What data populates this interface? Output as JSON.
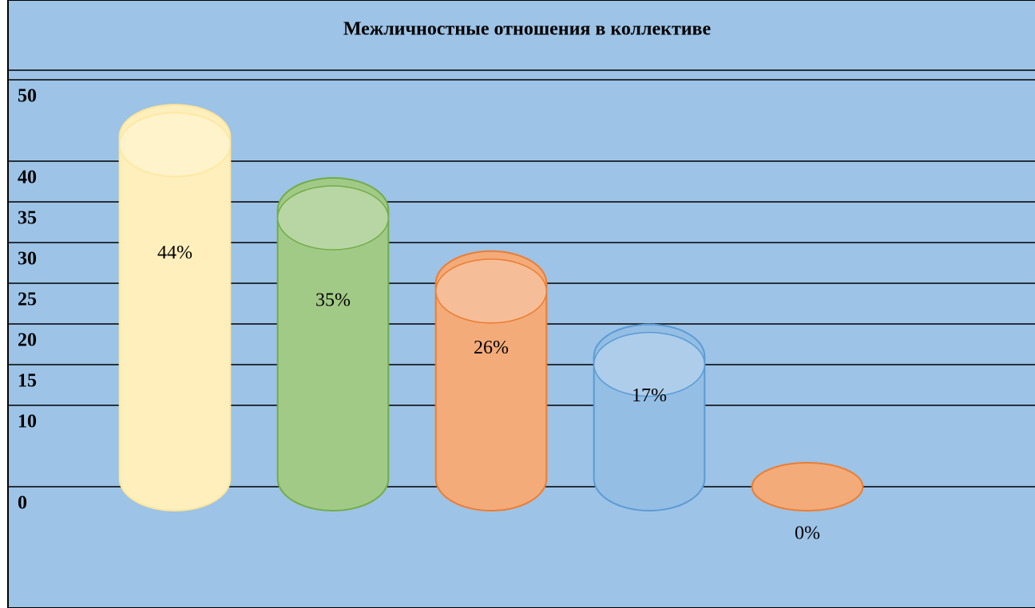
{
  "chart_data": {
    "type": "cylinder-bar",
    "title": "Межличностные отношения в коллективе",
    "values": [
      44,
      35,
      26,
      17,
      0
    ],
    "value_labels": [
      "44%",
      "35%",
      "26%",
      "17%",
      "0%"
    ],
    "colors": [
      "#ffe699",
      "#70ad47",
      "#ed7d31",
      "#5b9bd5",
      "#ed7d31"
    ],
    "ylim": [
      0,
      50
    ],
    "yticks": [
      0,
      10,
      15,
      20,
      25,
      30,
      35,
      40,
      50
    ],
    "grid": true
  }
}
